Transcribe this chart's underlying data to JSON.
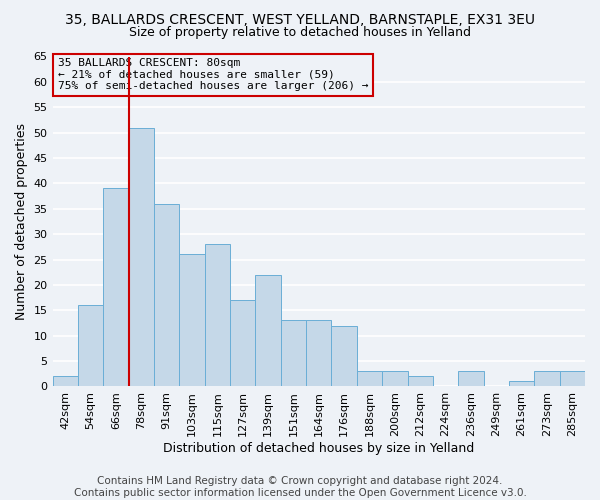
{
  "title": "35, BALLARDS CRESCENT, WEST YELLAND, BARNSTAPLE, EX31 3EU",
  "subtitle": "Size of property relative to detached houses in Yelland",
  "xlabel": "Distribution of detached houses by size in Yelland",
  "ylabel": "Number of detached properties",
  "footer_line1": "Contains HM Land Registry data © Crown copyright and database right 2024.",
  "footer_line2": "Contains public sector information licensed under the Open Government Licence v3.0.",
  "annotation_line1": "35 BALLARDS CRESCENT: 80sqm",
  "annotation_line2": "← 21% of detached houses are smaller (59)",
  "annotation_line3": "75% of semi-detached houses are larger (206) →",
  "bar_labels": [
    "42sqm",
    "54sqm",
    "66sqm",
    "78sqm",
    "91sqm",
    "103sqm",
    "115sqm",
    "127sqm",
    "139sqm",
    "151sqm",
    "164sqm",
    "176sqm",
    "188sqm",
    "200sqm",
    "212sqm",
    "224sqm",
    "236sqm",
    "249sqm",
    "261sqm",
    "273sqm",
    "285sqm"
  ],
  "bar_values": [
    2,
    16,
    39,
    51,
    36,
    26,
    28,
    17,
    22,
    13,
    13,
    12,
    3,
    3,
    2,
    0,
    3,
    0,
    1,
    3,
    3
  ],
  "bar_color": "#c5d8e8",
  "bar_edge_color": "#6aaed6",
  "highlight_bar_index": 3,
  "highlight_edge_color": "#cc0000",
  "annotation_box_edge_color": "#cc0000",
  "ylim": [
    0,
    65
  ],
  "yticks": [
    0,
    5,
    10,
    15,
    20,
    25,
    30,
    35,
    40,
    45,
    50,
    55,
    60,
    65
  ],
  "bg_color": "#eef2f7",
  "grid_color": "#ffffff",
  "title_fontsize": 10,
  "subtitle_fontsize": 9,
  "axis_label_fontsize": 9,
  "tick_fontsize": 8,
  "annotation_fontsize": 8,
  "footer_fontsize": 7.5
}
